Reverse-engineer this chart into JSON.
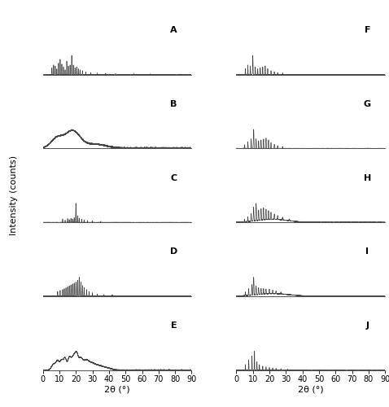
{
  "xlabel": "2θ (°)",
  "ylabel": "Intensity (counts)",
  "xlim": [
    0,
    90
  ],
  "line_color": "#444444",
  "line_width": 0.5,
  "axis_fontsize": 8,
  "tick_fontsize": 7,
  "panel_labels": [
    "A",
    "B",
    "C",
    "D",
    "E",
    "F",
    "G",
    "H",
    "I",
    "J"
  ],
  "panel_label_fontsize": 8,
  "bg_color": "#ffffff"
}
